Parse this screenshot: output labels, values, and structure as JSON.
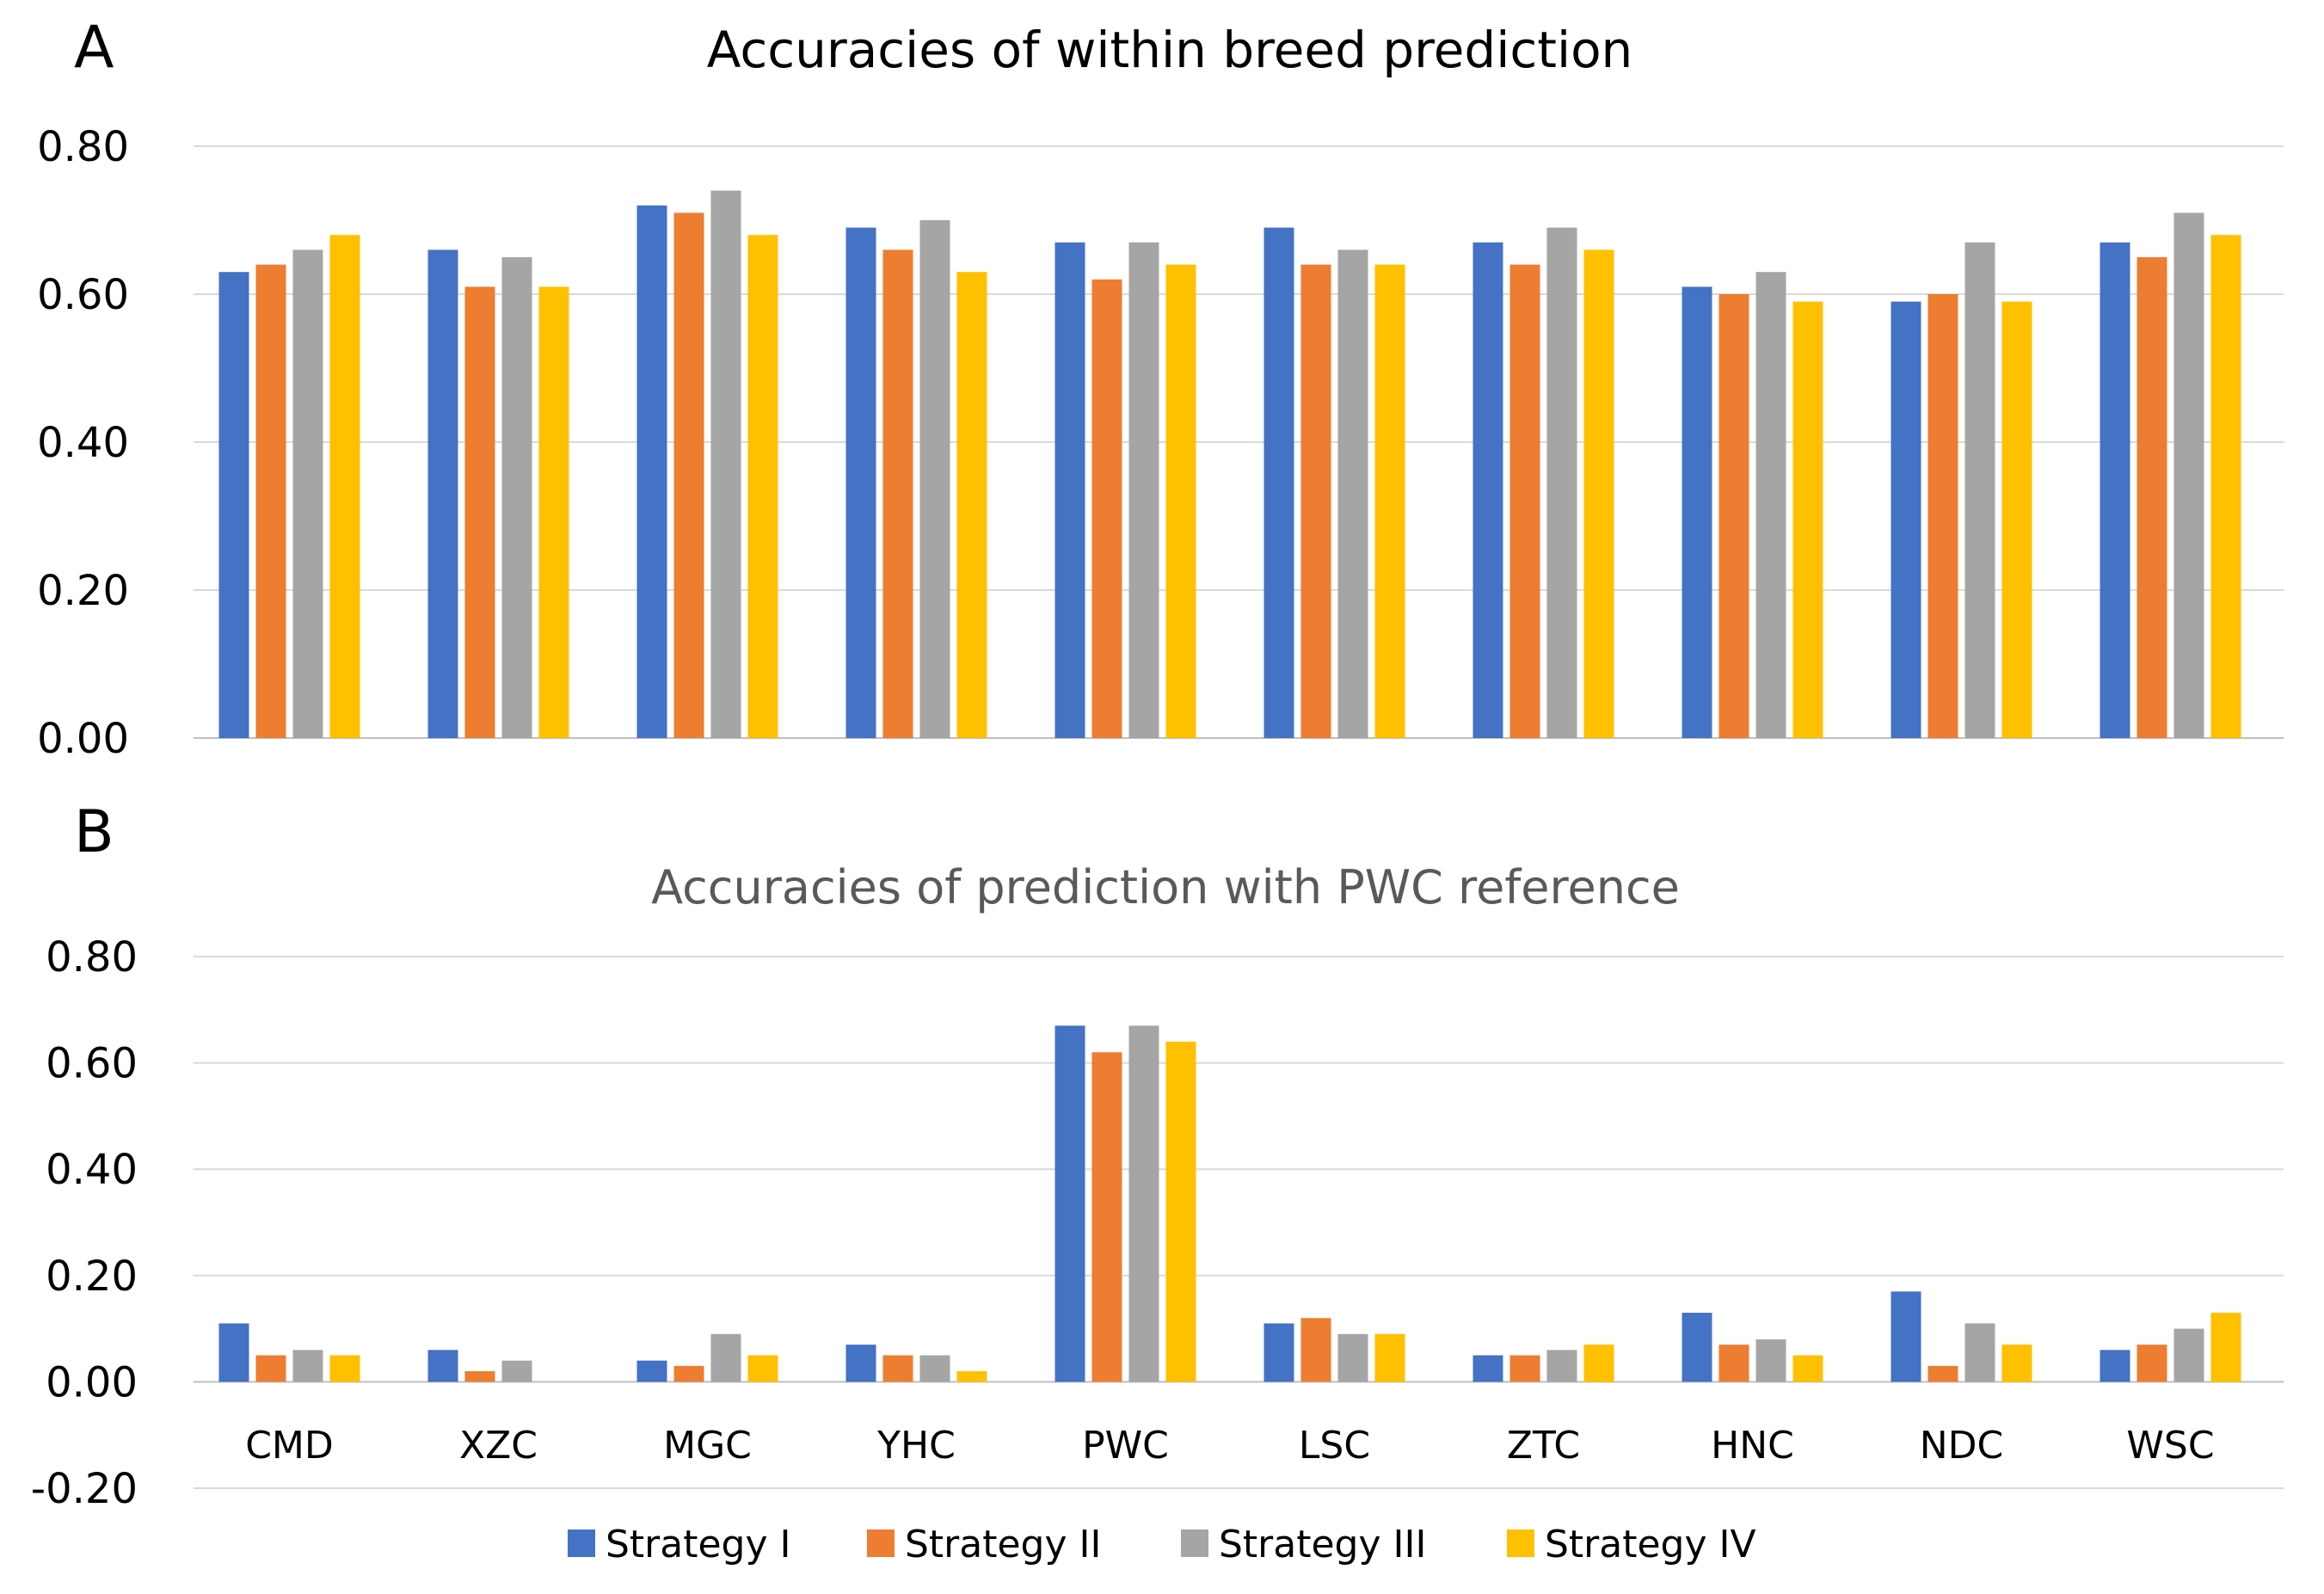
{
  "chart_data": [
    {
      "panel": "A",
      "type": "bar",
      "title": "Accuracies of within breed prediction",
      "categories": [
        "CMD",
        "XZC",
        "MGC",
        "YHC",
        "PWC",
        "LSC",
        "ZTC",
        "HNC",
        "NDC",
        "WSC"
      ],
      "series": [
        {
          "name": "Strategy I",
          "color": "#4472C4",
          "values": [
            0.63,
            0.66,
            0.72,
            0.69,
            0.67,
            0.69,
            0.67,
            0.61,
            0.59,
            0.67
          ]
        },
        {
          "name": "Strategy II",
          "color": "#ED7D31",
          "values": [
            0.64,
            0.61,
            0.71,
            0.66,
            0.62,
            0.64,
            0.64,
            0.6,
            0.6,
            0.65
          ]
        },
        {
          "name": "Strategy III",
          "color": "#A5A5A5",
          "values": [
            0.66,
            0.65,
            0.74,
            0.7,
            0.67,
            0.66,
            0.69,
            0.63,
            0.67,
            0.71
          ]
        },
        {
          "name": "Strategy IV",
          "color": "#FFC000",
          "values": [
            0.68,
            0.61,
            0.68,
            0.63,
            0.64,
            0.64,
            0.66,
            0.59,
            0.59,
            0.68
          ]
        }
      ],
      "ylim": [
        0.0,
        0.8
      ],
      "yticks": [
        "0.00",
        "0.20",
        "0.40",
        "0.60",
        "0.80"
      ],
      "xlabel": "",
      "ylabel": "",
      "grid": true
    },
    {
      "panel": "B",
      "type": "bar",
      "title": "Accuracies of prediction with PWC reference",
      "categories": [
        "CMD",
        "XZC",
        "MGC",
        "YHC",
        "PWC",
        "LSC",
        "ZTC",
        "HNC",
        "NDC",
        "WSC"
      ],
      "series": [
        {
          "name": "Strategy I",
          "color": "#4472C4",
          "values": [
            0.11,
            0.06,
            0.04,
            0.07,
            0.67,
            0.11,
            0.05,
            0.13,
            0.17,
            0.06
          ]
        },
        {
          "name": "Strategy II",
          "color": "#ED7D31",
          "values": [
            0.05,
            0.02,
            0.03,
            0.05,
            0.62,
            0.12,
            0.05,
            0.07,
            0.03,
            0.07
          ]
        },
        {
          "name": "Strategy III",
          "color": "#A5A5A5",
          "values": [
            0.06,
            0.04,
            0.09,
            0.05,
            0.67,
            0.09,
            0.06,
            0.08,
            0.11,
            0.1
          ]
        },
        {
          "name": "Strategy IV",
          "color": "#FFC000",
          "values": [
            0.05,
            0.0,
            0.05,
            0.02,
            0.64,
            0.09,
            0.07,
            0.05,
            0.07,
            0.13
          ]
        }
      ],
      "ylim": [
        -0.2,
        0.8
      ],
      "yticks": [
        "-0.20",
        "0.00",
        "0.20",
        "0.40",
        "0.60",
        "0.80"
      ],
      "xlabel": "",
      "ylabel": "",
      "grid": true,
      "legend": "bottom"
    }
  ],
  "panels": {
    "a_label": "A",
    "b_label": "B"
  },
  "legend": [
    {
      "label": "Strategy I",
      "color": "#4472C4"
    },
    {
      "label": "Strategy II",
      "color": "#ED7D31"
    },
    {
      "label": "Strategy III",
      "color": "#A5A5A5"
    },
    {
      "label": "Strategy IV",
      "color": "#FFC000"
    }
  ]
}
